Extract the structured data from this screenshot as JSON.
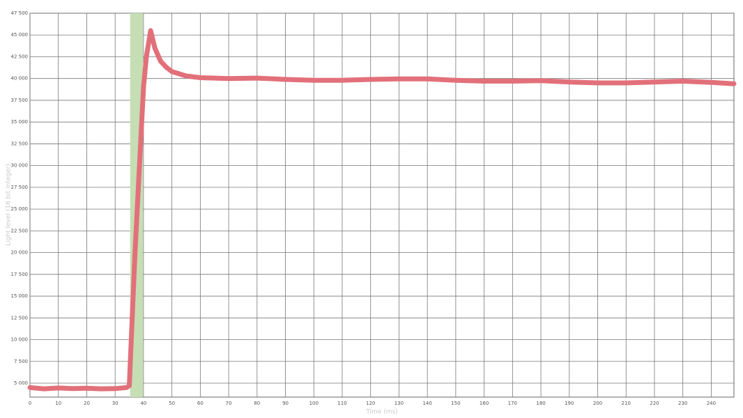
{
  "chart_data": {
    "type": "line",
    "x_label": "Time (ms)",
    "y_label": "Light level (16 bit integer)",
    "x": [
      0,
      5,
      10,
      15,
      20,
      25,
      30,
      34,
      35,
      37,
      40,
      41,
      42.5,
      44,
      46,
      48,
      50,
      55,
      60,
      70,
      80,
      90,
      100,
      110,
      120,
      130,
      140,
      150,
      160,
      170,
      180,
      190,
      200,
      210,
      220,
      230,
      240,
      248
    ],
    "values": [
      4500,
      4350,
      4450,
      4380,
      4420,
      4350,
      4380,
      4500,
      4700,
      20000,
      39000,
      42500,
      45500,
      43500,
      42000,
      41300,
      40800,
      40300,
      40100,
      40000,
      40050,
      39900,
      39800,
      39800,
      39900,
      39950,
      39950,
      39800,
      39700,
      39700,
      39750,
      39600,
      39500,
      39500,
      39600,
      39700,
      39550,
      39400
    ],
    "color": "#e2707a",
    "highlight": [
      35.3,
      39.8
    ],
    "highlight_color": "#c5deb3",
    "xlim": [
      0,
      248
    ],
    "ylim": [
      3400,
      47500
    ],
    "xticks": [
      0,
      10,
      20,
      30,
      40,
      50,
      60,
      70,
      80,
      90,
      100,
      110,
      120,
      130,
      140,
      150,
      160,
      170,
      180,
      190,
      200,
      210,
      220,
      230,
      240
    ],
    "yticks": [
      {
        "value": 5000,
        "label": "5 000"
      },
      {
        "value": 7500,
        "label": "7 500"
      },
      {
        "value": 10000,
        "label": "10 000"
      },
      {
        "value": 12500,
        "label": "12 500"
      },
      {
        "value": 15000,
        "label": "15 000"
      },
      {
        "value": 17500,
        "label": "17 500"
      },
      {
        "value": 20000,
        "label": "20 000"
      },
      {
        "value": 22500,
        "label": "22 500"
      },
      {
        "value": 25000,
        "label": "25 000"
      },
      {
        "value": 27500,
        "label": "27 500"
      },
      {
        "value": 30000,
        "label": "30 000"
      },
      {
        "value": 32500,
        "label": "32 500"
      },
      {
        "value": 35000,
        "label": "35 000"
      },
      {
        "value": 37500,
        "label": "37 500"
      },
      {
        "value": 40000,
        "label": "40 000"
      },
      {
        "value": 42500,
        "label": "42 500"
      },
      {
        "value": 45000,
        "label": "45 000"
      },
      {
        "value": 47500,
        "label": "47 500"
      }
    ],
    "grid": true
  }
}
